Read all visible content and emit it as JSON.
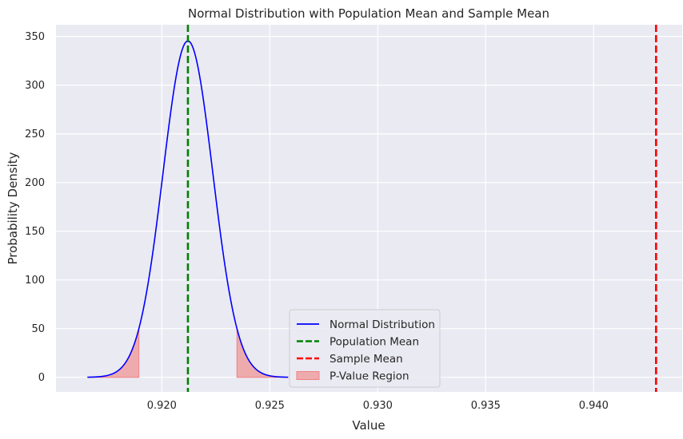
{
  "chart_data": {
    "type": "line",
    "title": "Normal Distribution with Population Mean and Sample Mean",
    "xlabel": "Value",
    "ylabel": "Probability Density",
    "xlim": [
      0.9151,
      0.9441
    ],
    "ylim": [
      -15,
      362
    ],
    "xticks": [
      0.92,
      0.925,
      0.93,
      0.935,
      0.94
    ],
    "xtick_labels": [
      "0.920",
      "0.925",
      "0.930",
      "0.935",
      "0.940"
    ],
    "yticks": [
      0,
      50,
      100,
      150,
      200,
      250,
      300,
      350
    ],
    "ytick_labels": [
      "0",
      "50",
      "100",
      "150",
      "200",
      "250",
      "300",
      "350"
    ],
    "grid": true,
    "background": "#eaeaf2",
    "distribution": {
      "name": "Normal Distribution",
      "mean": 0.92121,
      "std": 0.001155,
      "x_range": [
        0.91656,
        0.92585
      ],
      "color": "#0000ff"
    },
    "vlines": [
      {
        "name": "Population Mean",
        "x": 0.92121,
        "color": "#008000",
        "style": "dashed"
      },
      {
        "name": "Sample Mean",
        "x": 0.94289,
        "color": "#ff0000",
        "style": "dashed"
      }
    ],
    "shaded_regions": {
      "name": "P-Value Region",
      "color": "#f08080",
      "ranges": [
        [
          0.91656,
          0.91894
        ],
        [
          0.92348,
          0.92585
        ]
      ]
    },
    "legend": {
      "placement": "lower-center",
      "entries": [
        {
          "label": "Normal Distribution",
          "kind": "line",
          "color": "#0000ff"
        },
        {
          "label": "Population Mean",
          "kind": "dashed",
          "color": "#008000"
        },
        {
          "label": "Sample Mean",
          "kind": "dashed",
          "color": "#ff0000"
        },
        {
          "label": "P-Value Region",
          "kind": "patch",
          "color": "#f08080"
        }
      ]
    }
  }
}
